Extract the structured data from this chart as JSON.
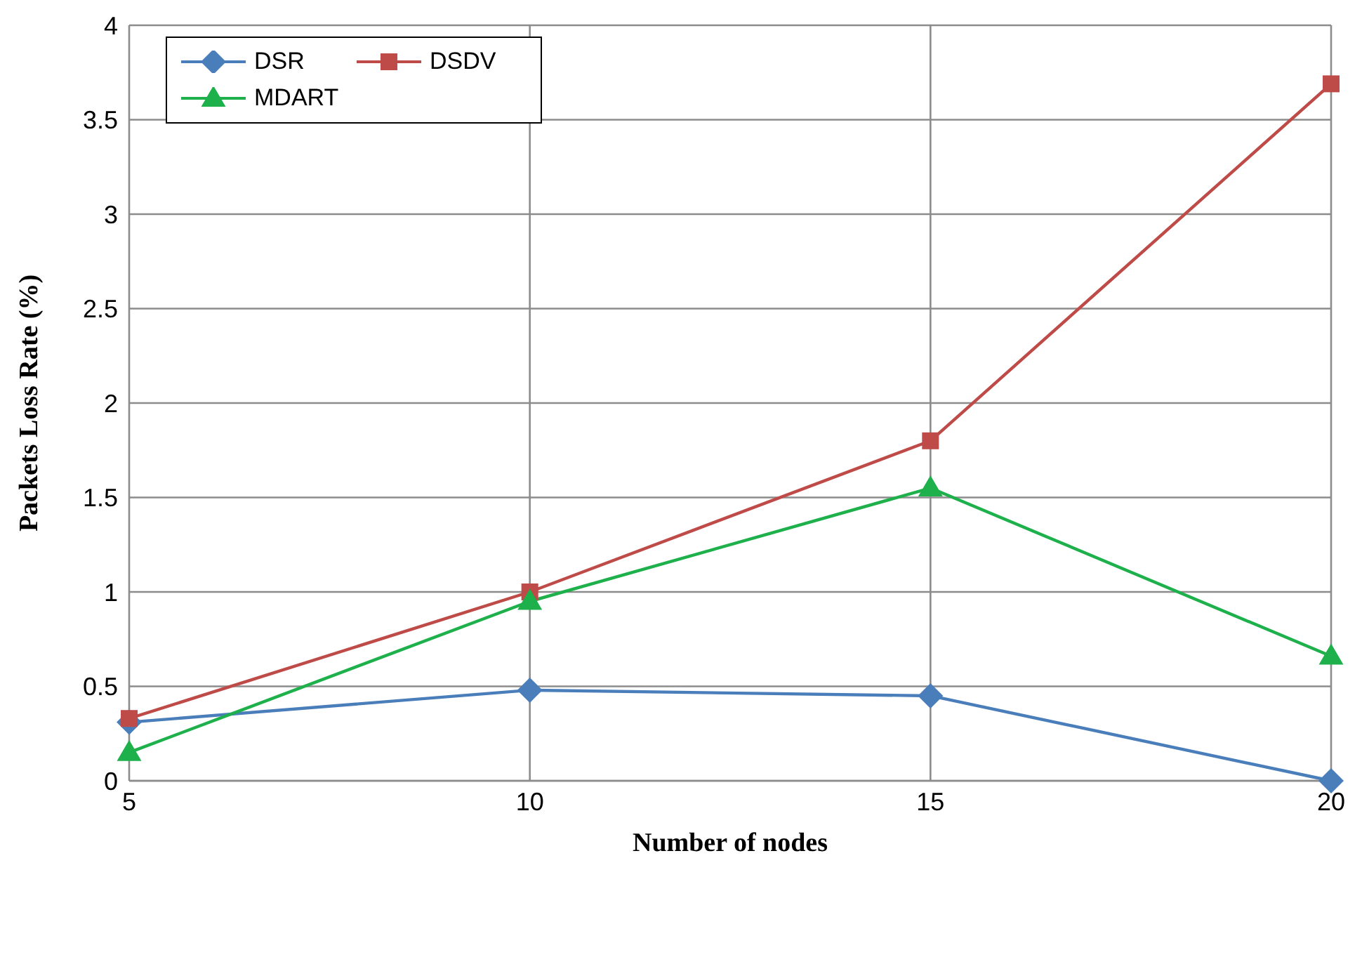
{
  "chart_data": {
    "type": "line",
    "xlabel": "Number of nodes",
    "ylabel": "Packets Loss Rate (%)",
    "x": [
      5,
      10,
      15,
      20
    ],
    "series": [
      {
        "name": "DSR",
        "color": "#4a7ebb",
        "marker": "diamond",
        "values": [
          0.31,
          0.48,
          0.45,
          0
        ]
      },
      {
        "name": "DSDV",
        "color": "#be4b48",
        "marker": "square",
        "values": [
          0.33,
          1.0,
          1.8,
          3.69
        ]
      },
      {
        "name": "MDART",
        "color": "#1db04b",
        "marker": "triangle",
        "values": [
          0.15,
          0.95,
          1.55,
          0.66
        ]
      }
    ],
    "xlim": [
      5,
      20
    ],
    "xticks": [
      5,
      10,
      15,
      20
    ],
    "ylim": [
      0,
      4
    ],
    "yticks": [
      0,
      0.5,
      1,
      1.5,
      2,
      2.5,
      3,
      3.5,
      4
    ],
    "grid": true,
    "legend": "top left",
    "line_style": "solid"
  }
}
